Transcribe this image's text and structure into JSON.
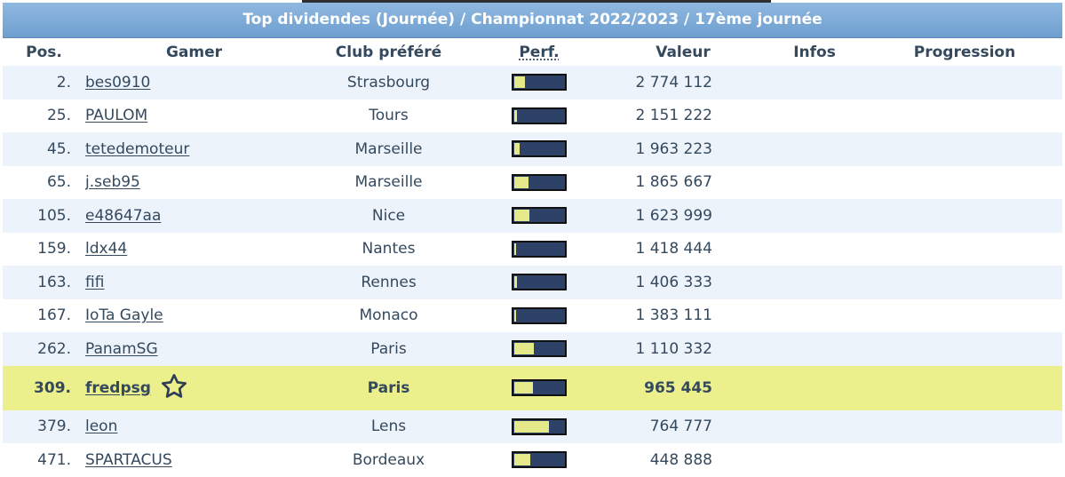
{
  "title": "Top dividendes (Journée) / Championnat 2022/2023 / 17ème journée",
  "colors": {
    "header_gradient_top": "#8fb8e0",
    "header_gradient_bottom": "#6e9fd0",
    "row_alt": "#edf3fb",
    "highlight_row": "#ebf08d",
    "bar_bg": "#2e4268",
    "bar_fill": "#e6e98a",
    "text": "#34495e"
  },
  "columns": {
    "pos": "Pos.",
    "gamer": "Gamer",
    "club": "Club préféré",
    "perf": "Perf.",
    "valeur": "Valeur",
    "infos": "Infos",
    "progression": "Progression"
  },
  "rows": [
    {
      "pos": "2.",
      "gamer": "bes0910",
      "club": "Strasbourg",
      "perf": 0.22,
      "valeur": "2 774 112"
    },
    {
      "pos": "25.",
      "gamer": "PAULOM",
      "club": "Tours",
      "perf": 0.05,
      "valeur": "2 151 222"
    },
    {
      "pos": "45.",
      "gamer": "tetedemoteur",
      "club": "Marseille",
      "perf": 0.1,
      "valeur": "1 963 223"
    },
    {
      "pos": "65.",
      "gamer": "j.seb95",
      "club": "Marseille",
      "perf": 0.28,
      "valeur": "1 865 667"
    },
    {
      "pos": "105.",
      "gamer": "e48647aa",
      "club": "Nice",
      "perf": 0.3,
      "valeur": "1 623 999"
    },
    {
      "pos": "159.",
      "gamer": "ldx44",
      "club": "Nantes",
      "perf": 0.0,
      "valeur": "1 418 444"
    },
    {
      "pos": "163.",
      "gamer": "fifi",
      "club": "Rennes",
      "perf": 0.06,
      "valeur": "1 406 333"
    },
    {
      "pos": "167.",
      "gamer": "IoTa Gayle",
      "club": "Monaco",
      "perf": 0.03,
      "valeur": "1 383 111"
    },
    {
      "pos": "262.",
      "gamer": "PanamSG",
      "club": "Paris",
      "perf": 0.4,
      "valeur": "1 110 332"
    },
    {
      "pos": "309.",
      "gamer": "fredpsg",
      "club": "Paris",
      "perf": 0.38,
      "valeur": "965 445",
      "highlight": true,
      "starred": true
    },
    {
      "pos": "379.",
      "gamer": "leon",
      "club": "Lens",
      "perf": 0.7,
      "valeur": "764 777"
    },
    {
      "pos": "471.",
      "gamer": "SPARTACUS",
      "club": "Bordeaux",
      "perf": 0.33,
      "valeur": "448 888"
    }
  ],
  "icons": {
    "star": "star-outline-icon"
  }
}
